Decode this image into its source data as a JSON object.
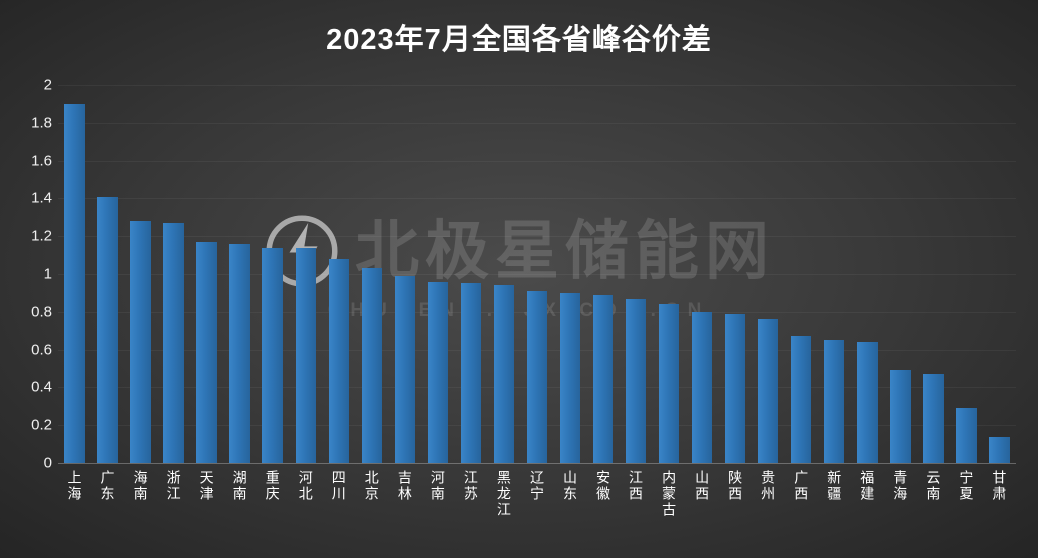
{
  "watermark": {
    "text": "北极星储能网",
    "subtext": "CHUNENG.BJX.COM.CN",
    "logo_icon": "globe-bolt-icon"
  },
  "chart_data": {
    "type": "bar",
    "title": "2023年7月全国各省峰谷价差",
    "categories": [
      "上海",
      "广东",
      "海南",
      "浙江",
      "天津",
      "湖南",
      "重庆",
      "河北",
      "四川",
      "北京",
      "吉林",
      "河南",
      "江苏",
      "黑龙江",
      "辽宁",
      "山东",
      "安徽",
      "江西",
      "内蒙古",
      "山西",
      "陕西",
      "贵州",
      "广西",
      "新疆",
      "福建",
      "青海",
      "云南",
      "宁夏",
      "甘肃"
    ],
    "values": [
      1.9,
      1.41,
      1.28,
      1.27,
      1.17,
      1.16,
      1.14,
      1.14,
      1.08,
      1.03,
      0.99,
      0.96,
      0.95,
      0.94,
      0.91,
      0.9,
      0.89,
      0.87,
      0.84,
      0.8,
      0.79,
      0.76,
      0.67,
      0.65,
      0.64,
      0.49,
      0.47,
      0.29,
      0.14
    ],
    "xlabel": "",
    "ylabel": "",
    "ylim": [
      0,
      2
    ],
    "yticks": [
      0,
      0.2,
      0.4,
      0.6,
      0.8,
      1,
      1.2,
      1.4,
      1.6,
      1.8,
      2
    ],
    "grid": false,
    "legend": false,
    "bar_color": "#2E75B6",
    "background_color": "#383838",
    "text_color": "#FFFFFF"
  }
}
